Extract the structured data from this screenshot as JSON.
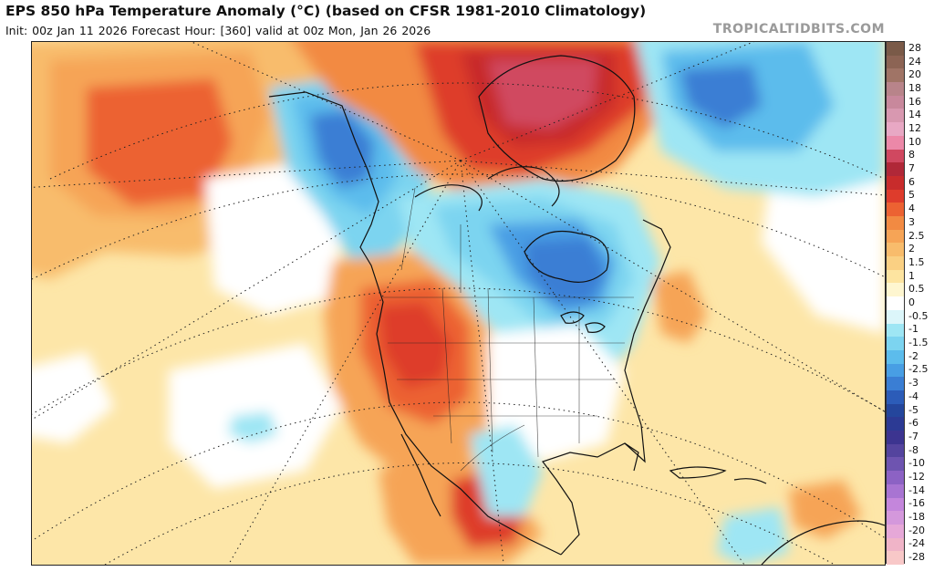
{
  "header": {
    "title": "EPS 850 hPa Temperature Anomaly (°C) (based on CFSR 1981-2010 Climatology)",
    "subtitle": "Init: 00z Jan 11 2026   Forecast Hour: [360]   valid at 00z Mon, Jan 26 2026",
    "watermark": "TROPICALTIDBITS.COM"
  },
  "map": {
    "projection": "polar stereographic",
    "region": "North America",
    "anomaly_features": [
      {
        "name": "Greenland warm anomaly",
        "sign": "warm",
        "peak": "8"
      },
      {
        "name": "Alaska / NW Canada cold anomaly",
        "sign": "cold",
        "peak": "-4"
      },
      {
        "name": "Hudson Bay / Great Lakes cold anomaly",
        "sign": "cold",
        "peak": "-4"
      },
      {
        "name": "Western US / Mexico warm anomaly",
        "sign": "warm",
        "peak": "4"
      },
      {
        "name": "NE Pacific warm anomaly",
        "sign": "warm",
        "peak": "3"
      },
      {
        "name": "North Atlantic cold anomaly",
        "sign": "cold",
        "peak": "-3"
      }
    ]
  },
  "colorbar": {
    "labels": [
      "28",
      "24",
      "20",
      "18",
      "16",
      "14",
      "12",
      "10",
      "8",
      "7",
      "6",
      "5",
      "4",
      "3",
      "2.5",
      "2",
      "1.5",
      "1",
      "0.5",
      "0",
      "-0.5",
      "-1",
      "-1.5",
      "-2",
      "-2.5",
      "-3",
      "-4",
      "-5",
      "-6",
      "-7",
      "-8",
      "-10",
      "-12",
      "-14",
      "-16",
      "-18",
      "-20",
      "-24",
      "-28"
    ],
    "colors": [
      "#7a5a48",
      "#8c6454",
      "#a07466",
      "#b8848a",
      "#c8889c",
      "#d898b0",
      "#e8a8c4",
      "#ec88a8",
      "#d04860",
      "#b02838",
      "#c82c2c",
      "#de3c2c",
      "#ec6232",
      "#f28a42",
      "#f6a456",
      "#f8bc6c",
      "#fad083",
      "#fde4a0",
      "#fef6d0",
      "#ffffff",
      "#dcf6fa",
      "#9ee6f4",
      "#7cd4f0",
      "#5cbcec",
      "#489ee4",
      "#3a7ed4",
      "#2c5cb8",
      "#24469c",
      "#2c3a94",
      "#3c3490",
      "#54449e",
      "#6e54b0",
      "#8c62c4",
      "#a874d2",
      "#c486dc",
      "#d498dc",
      "#e6a8d8",
      "#f0b4c8",
      "#f8c8c8"
    ]
  }
}
